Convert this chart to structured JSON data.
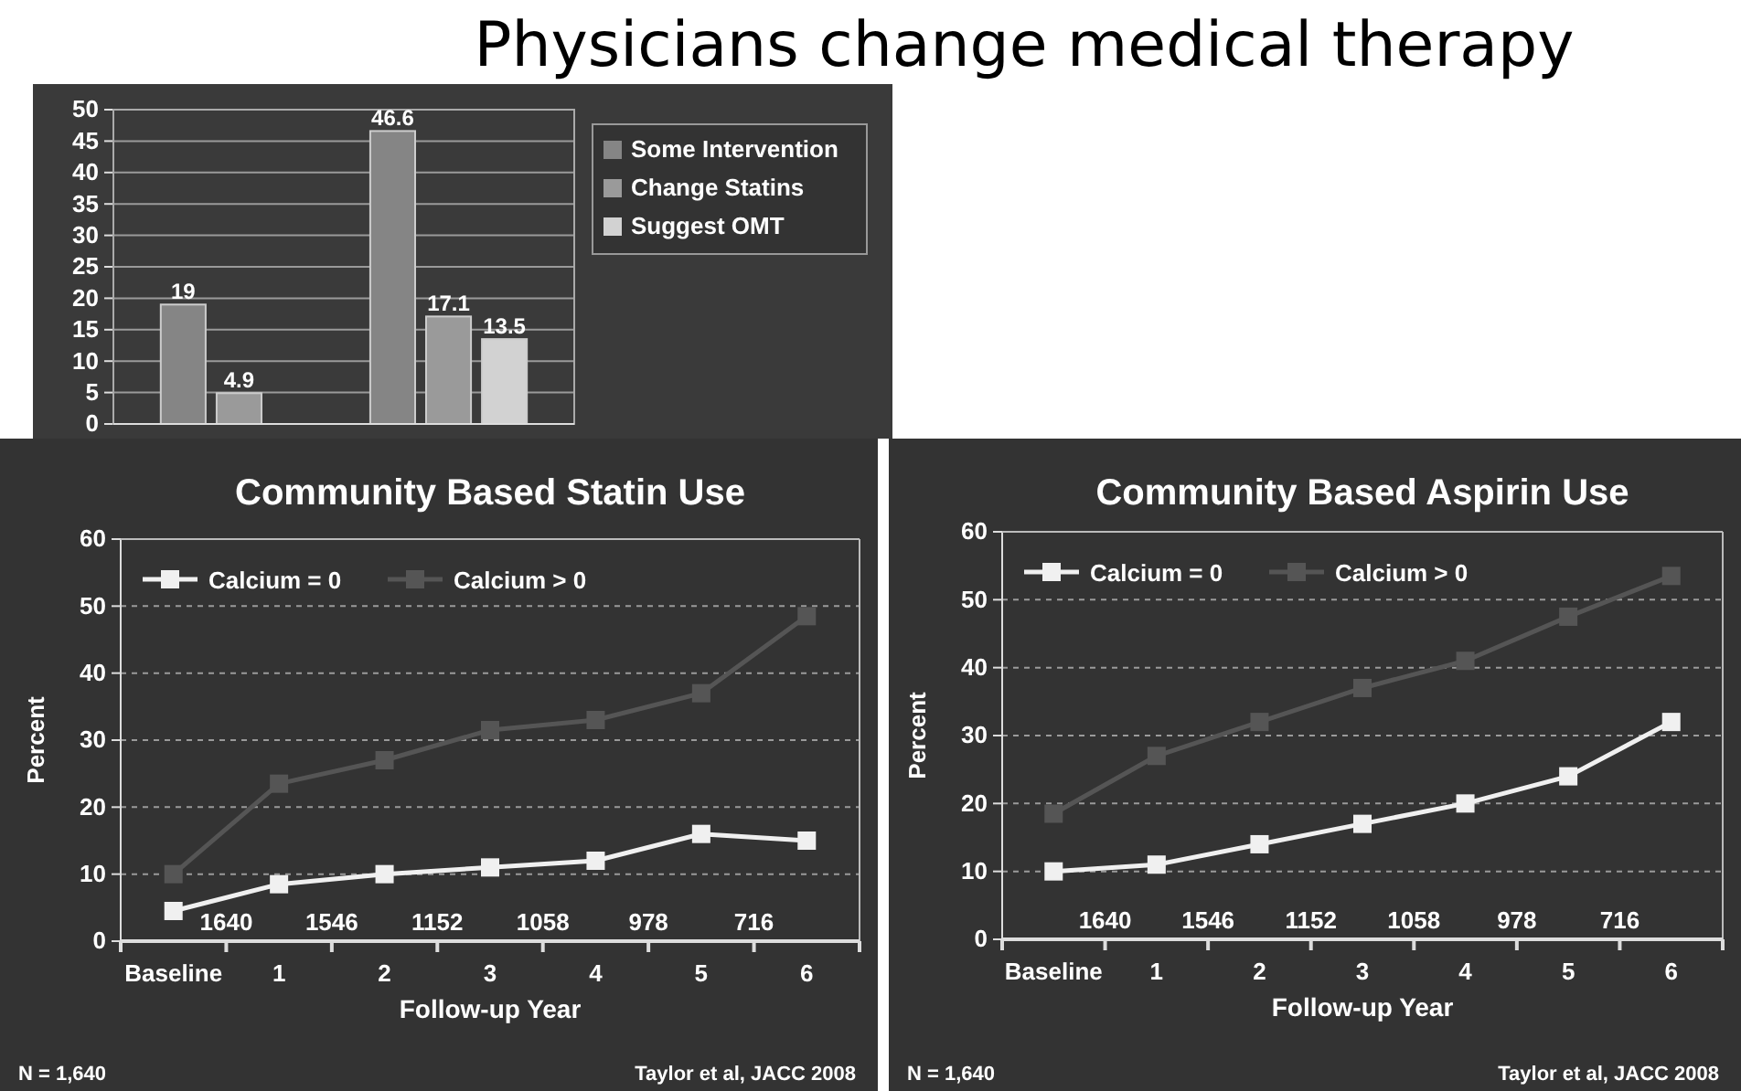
{
  "chart_data": [
    {
      "type": "bar",
      "title": "Physicians change medical therapy",
      "categories": [
        null,
        null
      ],
      "series": [
        {
          "name": "Some Intervention",
          "color": "#858585",
          "values": [
            19,
            46.6
          ]
        },
        {
          "name": "Change Statins",
          "color": "#9a9a9a",
          "values": [
            4.9,
            17.1
          ]
        },
        {
          "name": "Suggest OMT",
          "color": "#d2d2d2",
          "values": [
            null,
            13.5
          ]
        }
      ],
      "ylim": [
        0,
        50
      ],
      "yticks": [
        0,
        5,
        10,
        15,
        20,
        25,
        30,
        35,
        40,
        45,
        50
      ],
      "grid": "y",
      "legend": "top right",
      "data_labels": true
    },
    {
      "type": "line",
      "title": "Community Based Statin Use",
      "xlabel": "Follow-up Year",
      "ylabel": "Percent",
      "categories": [
        "Baseline",
        "1",
        "2",
        "3",
        "4",
        "5",
        "6"
      ],
      "series": [
        {
          "name": "Calcium = 0",
          "color": "#f0f0f0",
          "values": [
            4.5,
            8.5,
            10,
            11,
            12,
            16,
            15
          ]
        },
        {
          "name": "Calcium > 0",
          "color": "#555555",
          "values": [
            10,
            23.5,
            27,
            31.5,
            33,
            37,
            48.5
          ]
        }
      ],
      "ylim": [
        0,
        60
      ],
      "yticks": [
        0,
        10,
        20,
        30,
        40,
        50,
        60
      ],
      "grid": "y",
      "legend": "top left",
      "marker": "square",
      "annotations": [
        "1640",
        "1546",
        "1152",
        "1058",
        "978",
        "716",
        "N = 1,640",
        "Taylor et al, JACC 2008"
      ]
    },
    {
      "type": "line",
      "title": "Community Based Aspirin Use",
      "xlabel": "Follow-up Year",
      "ylabel": "Percent",
      "categories": [
        "Baseline",
        "1",
        "2",
        "3",
        "4",
        "5",
        "6"
      ],
      "series": [
        {
          "name": "Calcium = 0",
          "color": "#f0f0f0",
          "values": [
            10,
            11,
            14,
            17,
            20,
            24,
            32
          ]
        },
        {
          "name": "Calcium > 0",
          "color": "#555555",
          "values": [
            18.5,
            27,
            32,
            37,
            41,
            47.5,
            53.5
          ]
        }
      ],
      "ylim": [
        0,
        60
      ],
      "yticks": [
        0,
        10,
        20,
        30,
        40,
        50,
        60
      ],
      "grid": "y",
      "legend": "top left",
      "marker": "square",
      "annotations": [
        "1640",
        "1546",
        "1152",
        "1058",
        "978",
        "716",
        "N = 1,640",
        "Taylor et al, JACC 2008"
      ]
    }
  ]
}
